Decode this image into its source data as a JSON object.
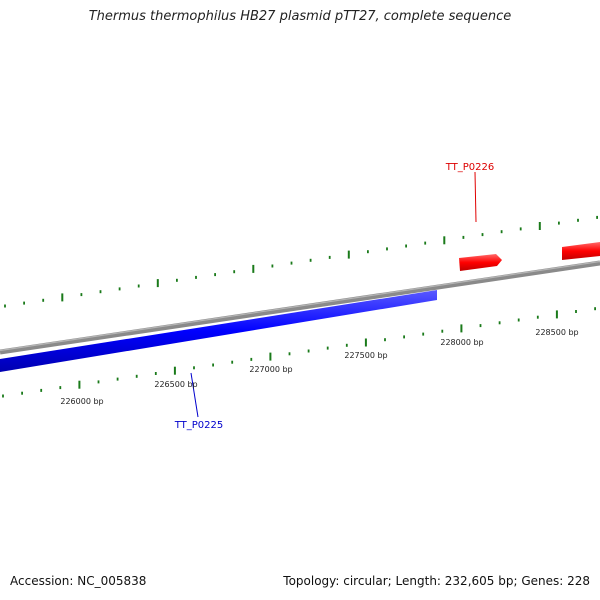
{
  "title": "Thermus thermophilus HB27 plasmid pTT27, complete sequence",
  "accession": "Accession: NC_005838",
  "summary": "Topology: circular; Length: 232,605 bp; Genes: 228",
  "colors": {
    "backbone": "#808080",
    "forward_gene": "#ff0000",
    "reverse_gene": "#0000ff",
    "ticks": "#1a7a1a"
  },
  "genes": [
    {
      "name": "TT_P0225",
      "strand": "reverse",
      "color": "#0000ff"
    },
    {
      "name": "TT_P0226",
      "strand": "forward",
      "color": "#ff0000"
    }
  ],
  "scale_labels": [
    "226000 bp",
    "226500 bp",
    "227000 bp",
    "227500 bp",
    "228000 bp",
    "228500 bp"
  ]
}
